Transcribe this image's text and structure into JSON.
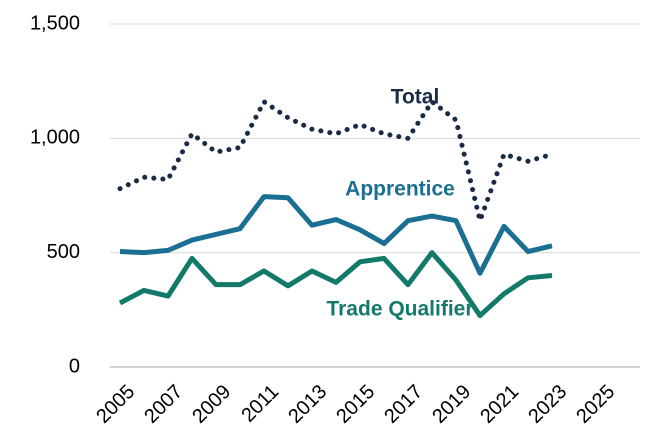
{
  "chart_data": {
    "type": "line",
    "x": [
      2005,
      2006,
      2007,
      2008,
      2009,
      2010,
      2011,
      2012,
      2013,
      2014,
      2015,
      2016,
      2017,
      2018,
      2019,
      2020,
      2021,
      2022,
      2023
    ],
    "series": [
      {
        "name": "Total",
        "color": "#1a2b45",
        "dash": "dotted",
        "values": [
          780,
          830,
          820,
          1020,
          940,
          960,
          1160,
          1090,
          1040,
          1020,
          1060,
          1020,
          1000,
          1160,
          1080,
          640,
          930,
          900,
          930
        ]
      },
      {
        "name": "Apprentice",
        "color": "#1b6f93",
        "values": [
          505,
          500,
          510,
          555,
          580,
          605,
          745,
          740,
          620,
          645,
          600,
          540,
          640,
          660,
          640,
          410,
          615,
          505,
          530
        ]
      },
      {
        "name": "Trade Qualifier",
        "color": "#137a6a",
        "values": [
          280,
          335,
          310,
          475,
          360,
          360,
          420,
          355,
          420,
          370,
          460,
          475,
          360,
          500,
          380,
          225,
          320,
          390,
          400
        ]
      }
    ],
    "xlim": [
      2005,
      2025
    ],
    "xticks": [
      2005,
      2007,
      2009,
      2011,
      2013,
      2015,
      2017,
      2019,
      2021,
      2023,
      2025
    ],
    "ylim": [
      0,
      1500
    ],
    "yticks": [
      0,
      500,
      {
        "value": 1000,
        "label": "1,000"
      },
      {
        "value": 1500,
        "label": "1,500"
      }
    ],
    "grid": true
  }
}
